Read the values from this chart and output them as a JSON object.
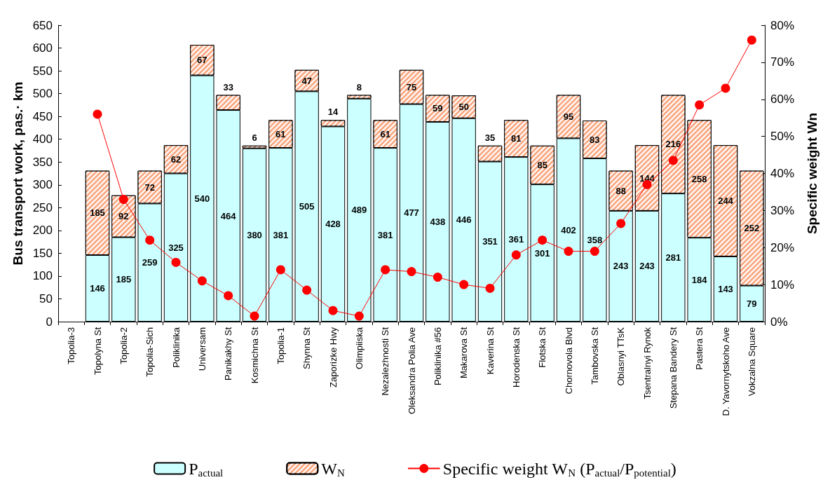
{
  "chart_data": {
    "type": "bar",
    "stacked": true,
    "ylabel": "Bus transport work, pas.· km",
    "y2label": "Specific weight Wn",
    "categories": [
      "Topolia-3",
      "Topolyna St",
      "Topolia-2",
      "Topolia-Sich",
      "Poliklinika",
      "Universam",
      "Panikakhy St",
      "Kosmichna St",
      "Topolia-1",
      "Shynna St",
      "Zaporizke Hwy",
      "Olimpiiska",
      "Nezalezhnosti St",
      "Oleksandra Polia Ave",
      "Poliklinika #56",
      "Makarova St",
      "Kaverina St",
      "Horodenska St",
      "Flotska St",
      "Chornovola Blvd",
      "Tambovska St",
      "Oblasnyi TTsK",
      "Tsentralnyi Rynok",
      "Stepana Bandery St",
      "Pastera St",
      "D. Yavornytskoho Ave",
      "Vokzalna Square"
    ],
    "series": [
      {
        "name": "P$_{actual}$",
        "color": "#ccffff",
        "values": [
          null,
          146,
          185,
          259,
          325,
          540,
          464,
          380,
          381,
          505,
          428,
          489,
          381,
          477,
          438,
          446,
          351,
          361,
          301,
          402,
          358,
          243,
          243,
          281,
          184,
          143,
          79
        ],
        "value_labels": [
          null,
          "146",
          "185",
          "259",
          "325",
          "540",
          "464",
          "380",
          "381",
          "505",
          "428",
          "489",
          "381",
          "477",
          "438",
          "446",
          "351",
          "361",
          "301",
          "402",
          "358",
          "243",
          "243",
          "281",
          "184",
          "143",
          "79"
        ]
      },
      {
        "name": "W$_{N}$",
        "color": "#f79a6e",
        "values": [
          null,
          185,
          92,
          72,
          62,
          67,
          33,
          6,
          61,
          47,
          14,
          8,
          61,
          75,
          59,
          50,
          35,
          81,
          85,
          95,
          83,
          88,
          144,
          216,
          258,
          244,
          252
        ],
        "value_labels": [
          null,
          "185",
          "92",
          "72",
          "62",
          "67",
          "33",
          "6",
          "61",
          "47",
          "14",
          "8",
          "61",
          "75",
          "59",
          "50",
          "35",
          "81",
          "85",
          "95",
          "83",
          "88",
          "144",
          "216",
          "258",
          "244",
          "252"
        ]
      },
      {
        "name": "Specific weight W$_{N}$ (P$_{actual}$/P$_{potential}$)",
        "type": "line",
        "axis": "y2",
        "color": "#ff0000",
        "values": [
          null,
          56,
          33,
          22,
          16,
          11,
          7,
          1.5,
          14,
          8.5,
          3,
          1.5,
          14,
          13.5,
          12,
          10,
          9,
          18,
          22,
          19,
          19,
          26.5,
          37,
          43.5,
          58.5,
          63,
          76
        ]
      }
    ],
    "marker": "circle",
    "line_style": "solid",
    "grid": false,
    "legend": "bottom",
    "ylim": [
      0,
      650
    ],
    "yticks": [
      0,
      50,
      100,
      150,
      200,
      250,
      300,
      350,
      400,
      450,
      500,
      550,
      600,
      650
    ],
    "y2lim": [
      0,
      80
    ],
    "y2ticks": [
      {
        "value": 0,
        "label": "0%"
      },
      {
        "value": 10,
        "label": "10%"
      },
      {
        "value": 20,
        "label": "20%"
      },
      {
        "value": 30,
        "label": "30%"
      },
      {
        "value": 40,
        "label": "40%"
      },
      {
        "value": 50,
        "label": "50%"
      },
      {
        "value": 60,
        "label": "60%"
      },
      {
        "value": 70,
        "label": "70%"
      },
      {
        "value": 80,
        "label": "80%"
      }
    ]
  }
}
